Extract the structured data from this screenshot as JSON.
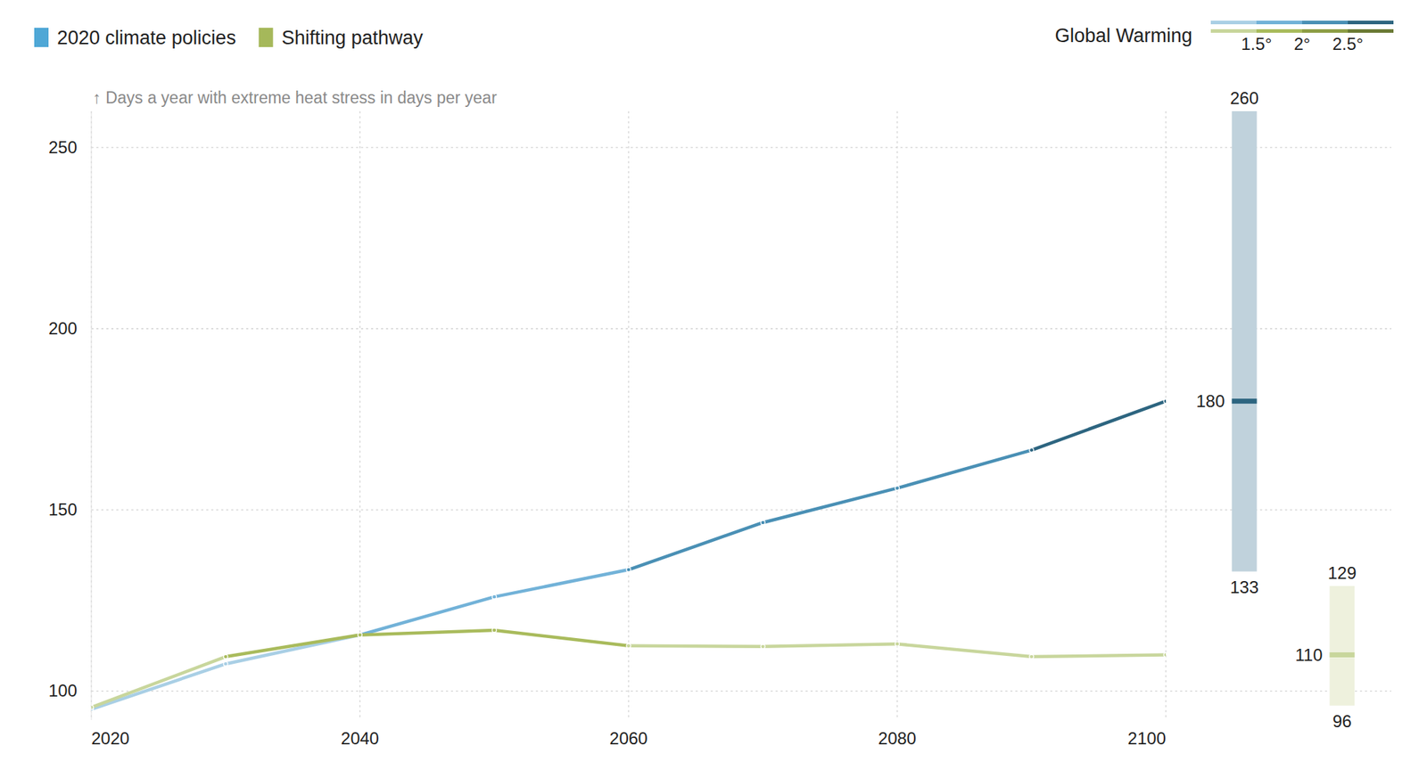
{
  "chart_data": {
    "type": "line",
    "y_label": "↑ Days a year with extreme heat stress in days per year",
    "x": [
      2020,
      2030,
      2040,
      2050,
      2060,
      2070,
      2080,
      2090,
      2100
    ],
    "xlim": [
      2020,
      2100
    ],
    "xticks": [
      2020,
      2040,
      2060,
      2080,
      2100
    ],
    "ylim": [
      92,
      260
    ],
    "yticks": [
      100,
      150,
      200,
      250
    ],
    "grid": true,
    "marker": "circle",
    "legend": "top left",
    "warming_scale": {
      "title": "Global Warming",
      "ticks": [
        {
          "value": 1.5,
          "label": "1.5°"
        },
        {
          "value": 2,
          "label": "2°"
        },
        {
          "value": 2.5,
          "label": "2.5°"
        }
      ]
    },
    "series": [
      {
        "name": "2020 climate policies",
        "color": "#4fa7d6",
        "colors": [
          "#a9cfe5",
          "#72b2d8",
          "#4a90b5",
          "#2d6580"
        ],
        "values": [
          95,
          107.5,
          115.5,
          126,
          133.5,
          146.5,
          156,
          166.5,
          180
        ],
        "warming": [
          1.2,
          1.4,
          1.6,
          1.8,
          2.0,
          2.2,
          2.35,
          2.5,
          2.7
        ],
        "range": {
          "low": 133,
          "value": 180,
          "high": 260
        }
      },
      {
        "name": "Shifting pathway",
        "color": "#a5b85a",
        "colors": [
          "#c8d69c",
          "#a9bb5c",
          "#8d9e45",
          "#6b7a35"
        ],
        "values": [
          95.5,
          109.5,
          115.5,
          116.8,
          112.5,
          112.3,
          113,
          109.5,
          110
        ],
        "warming": [
          1.2,
          1.5,
          1.6,
          1.6,
          1.45,
          1.4,
          1.4,
          1.35,
          1.3
        ],
        "range": {
          "low": 96,
          "value": 110,
          "high": 129
        }
      }
    ]
  }
}
